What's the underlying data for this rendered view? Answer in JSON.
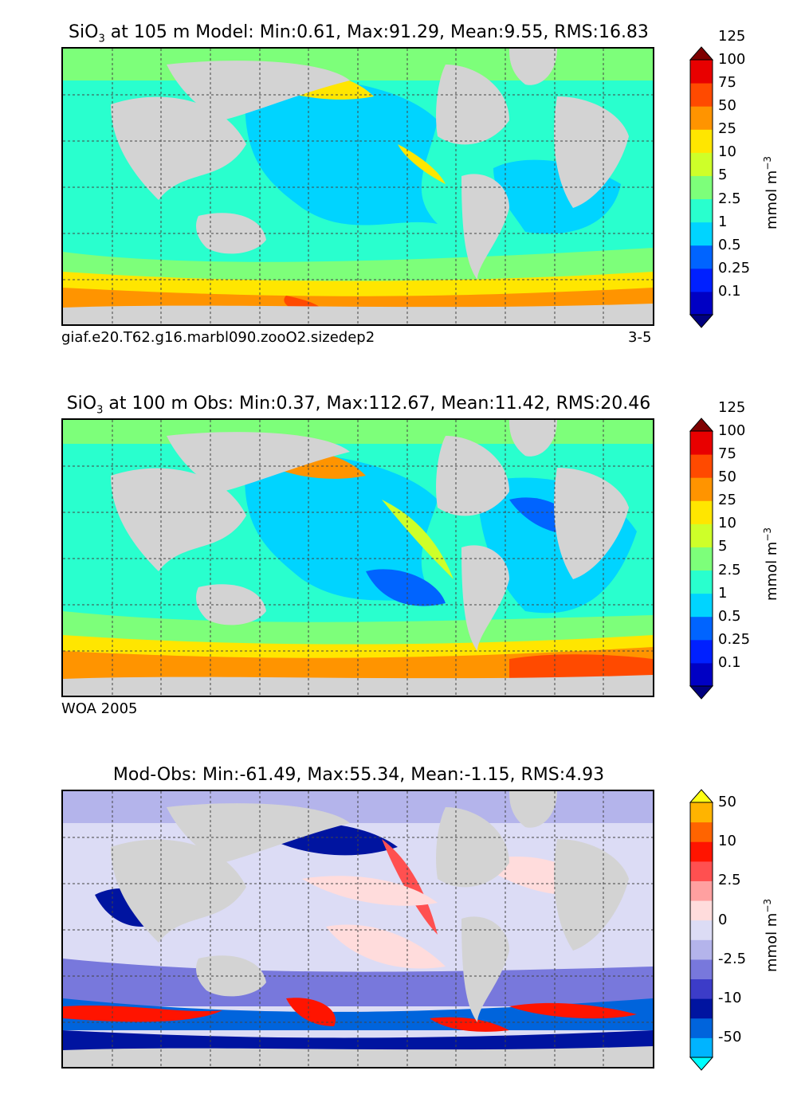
{
  "panels": [
    {
      "title_prefix": "SiO",
      "title_sub": "3",
      "title_rest": " at 105 m Model: Min:0.61, Max:91.29, Mean:9.55, RMS:16.83",
      "footer_left": "giaf.e20.T62.g16.marbl090.zooO2.sizedep2",
      "footer_right": "3-5",
      "colorbar": {
        "colors": [
          "#00007f",
          "#0000c4",
          "#0020ff",
          "#0064ff",
          "#00d4ff",
          "#29ffce",
          "#7dff7a",
          "#ceff29",
          "#ffe600",
          "#ff9400",
          "#ff4a00",
          "#e80000",
          "#7f0000"
        ],
        "ticks": [
          "0.1",
          "0.25",
          "0.5",
          "1",
          "2.5",
          "5",
          "10",
          "25",
          "50",
          "75",
          "100",
          "125"
        ],
        "unit": "mmol m",
        "unit_sup": "−3"
      }
    },
    {
      "title_prefix": "SiO",
      "title_sub": "3",
      "title_rest": " at 100 m Obs: Min:0.37, Max:112.67, Mean:11.42, RMS:20.46",
      "footer_left": "WOA 2005",
      "footer_right": "",
      "colorbar": {
        "colors": [
          "#00007f",
          "#0000c4",
          "#0020ff",
          "#0064ff",
          "#00d4ff",
          "#29ffce",
          "#7dff7a",
          "#ceff29",
          "#ffe600",
          "#ff9400",
          "#ff4a00",
          "#e80000",
          "#7f0000"
        ],
        "ticks": [
          "0.1",
          "0.25",
          "0.5",
          "1",
          "2.5",
          "5",
          "10",
          "25",
          "50",
          "75",
          "100",
          "125"
        ],
        "unit": "mmol m",
        "unit_sup": "−3"
      }
    },
    {
      "title_prefix": "",
      "title_sub": "",
      "title_rest": "Mod-Obs: Min:-61.49, Max:55.34, Mean:-1.15, RMS:4.93",
      "footer_left": "",
      "footer_right": "",
      "colorbar": {
        "colors": [
          "#00ffff",
          "#00b4ff",
          "#0064dc",
          "#0014a0",
          "#3c3cc8",
          "#7878dc",
          "#b4b4eb",
          "#dcdcf5",
          "#ffdcdc",
          "#ffa0a0",
          "#ff5050",
          "#ff1400",
          "#ff6400",
          "#ffb400",
          "#ffff14"
        ],
        "ticks": [
          "-50",
          "-10",
          "-2.5",
          "0",
          "2.5",
          "10",
          "50"
        ],
        "unit": "mmol m",
        "unit_sup": "−3"
      }
    }
  ]
}
